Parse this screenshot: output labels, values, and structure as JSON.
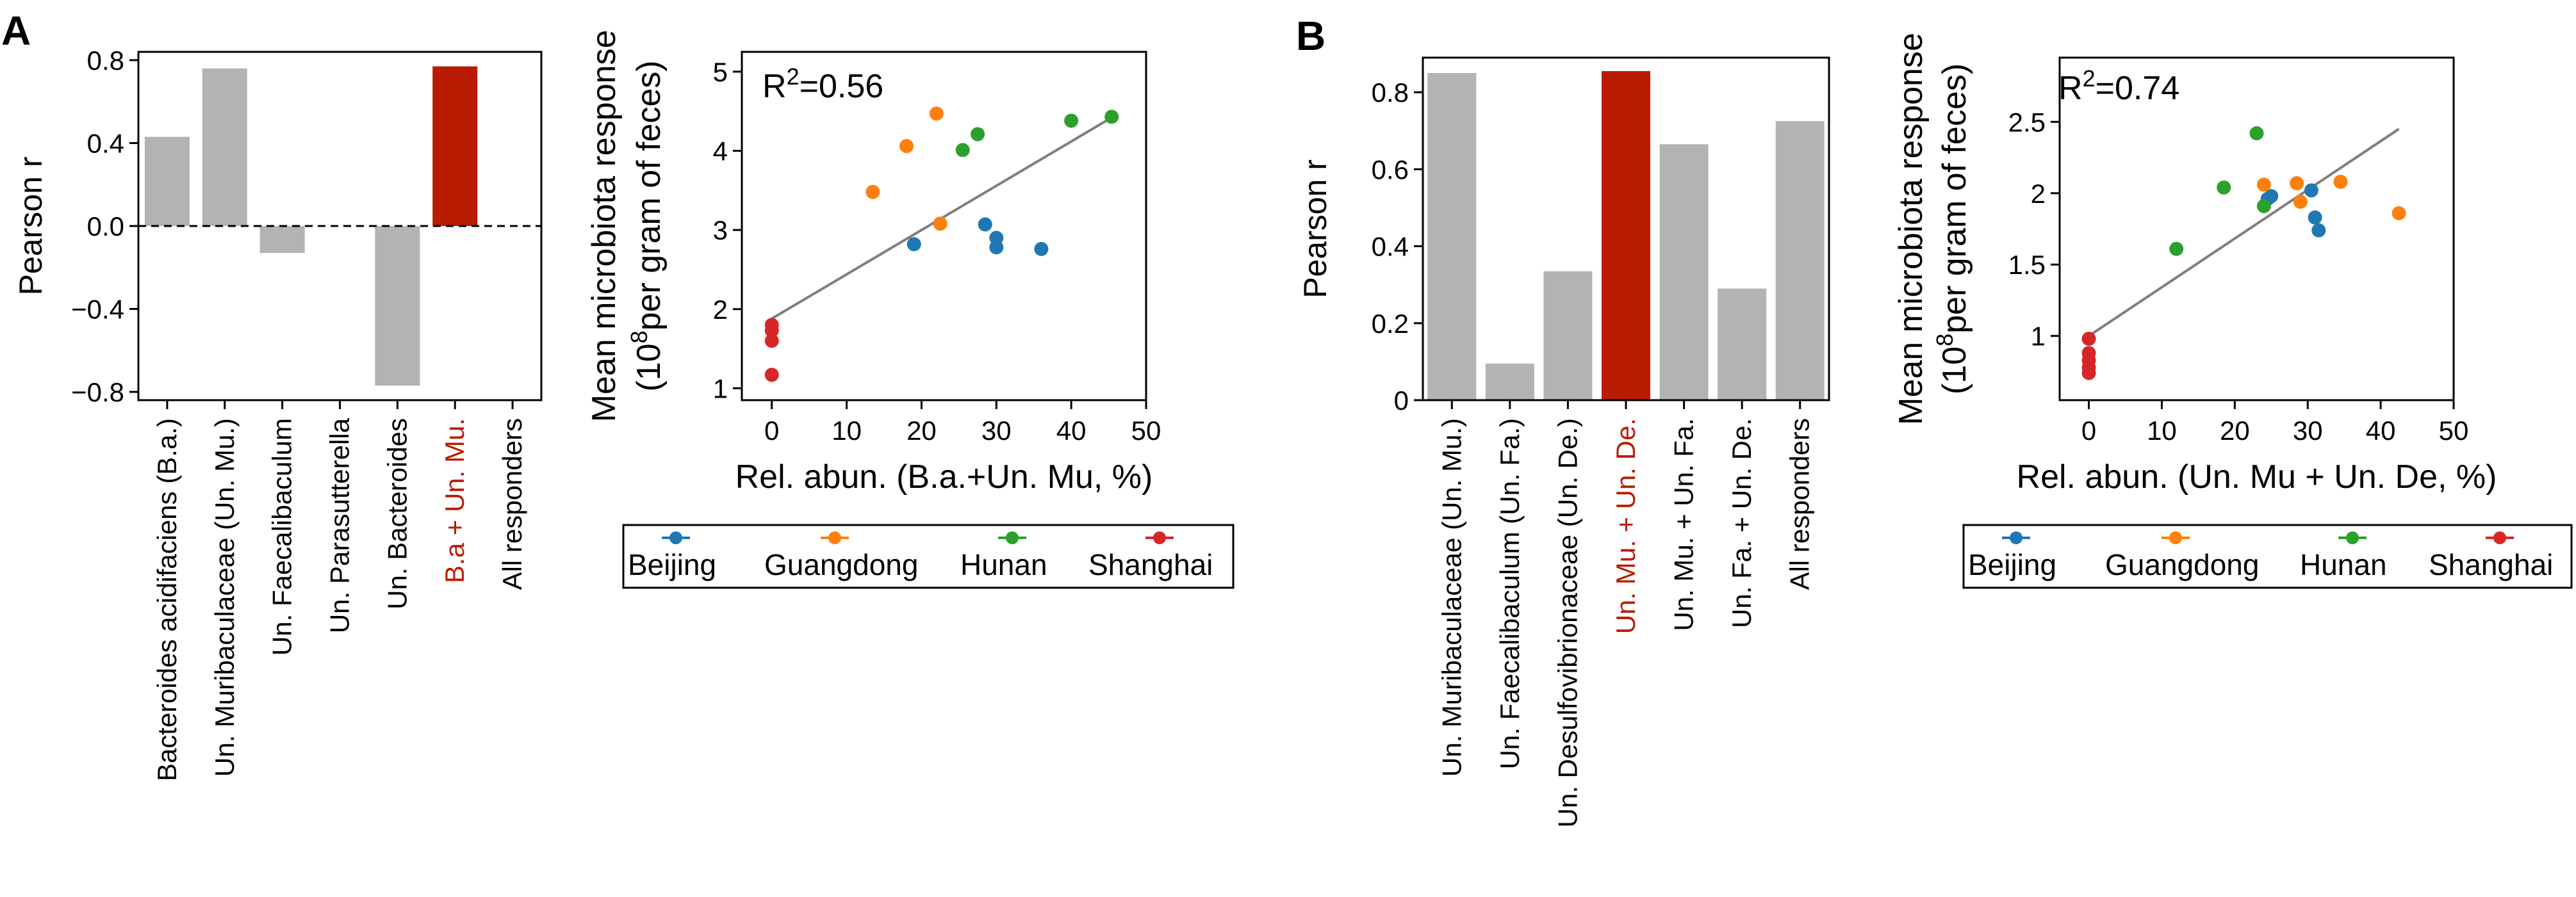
{
  "panels": [
    {
      "label": "A"
    },
    {
      "label": "B"
    }
  ],
  "chart_data": [
    {
      "id": "A-bar",
      "type": "bar",
      "ylabel": "Pearson r",
      "ylim": [
        -0.84,
        0.84
      ],
      "yticks": [
        -0.8,
        -0.4,
        0.0,
        0.4,
        0.8
      ],
      "ytick_labels": [
        "−0.8",
        "−0.4",
        "0.0",
        "0.4",
        "0.8"
      ],
      "zero_line": "dashed",
      "categories": [
        "Bacteroides acidifaciens (B.a.)",
        "Un. Muribaculaceae (Un. Mu.)",
        "Un. Faecalibaculum",
        "Un. Parasutterella",
        "Un. Bacteroides",
        "B.a + Un. Mu.",
        "All responders"
      ],
      "values": [
        0.43,
        0.76,
        -0.13,
        null,
        -0.77,
        0.77,
        null
      ],
      "highlight_index": 5,
      "colors": {
        "default": "#b3b3b3",
        "highlight": "#b91c03"
      }
    },
    {
      "id": "A-scatter",
      "type": "scatter",
      "annotation": {
        "prefix": "R",
        "sup": "2",
        "suffix": "=0.56"
      },
      "xlabel": "Rel. abun. (B.a.+Un. Mu, %)",
      "ylabel_line1": "Mean microbiota response",
      "ylabel_line2_sup": "8",
      "ylabel_line2_pre": "(10",
      "ylabel_line2_post": "per gram of feces)",
      "xlim": [
        -4,
        50
      ],
      "ylim": [
        0.85,
        5.25
      ],
      "xticks": [
        0,
        10,
        20,
        30,
        40,
        50
      ],
      "yticks": [
        1,
        2,
        3,
        4,
        5
      ],
      "ytick_labels": [
        "1",
        "2",
        "3",
        "4",
        "5"
      ],
      "fit_line": {
        "x": [
          0,
          45.4
        ],
        "y": [
          1.88,
          4.42
        ]
      },
      "series": [
        {
          "name": "Beijing",
          "color": "#1f77b4",
          "points": [
            [
              19,
              2.82
            ],
            [
              28.5,
              3.07
            ],
            [
              30,
              2.9
            ],
            [
              30,
              2.78
            ],
            [
              36,
              2.76
            ]
          ]
        },
        {
          "name": "Guangdong",
          "color": "#ff7f0e",
          "points": [
            [
              13.5,
              3.48
            ],
            [
              18,
              4.06
            ],
            [
              22,
              4.47
            ],
            [
              22.5,
              3.08
            ]
          ]
        },
        {
          "name": "Hunan",
          "color": "#2ca02c",
          "points": [
            [
              25.5,
              4.01
            ],
            [
              27.5,
              4.21
            ],
            [
              40,
              4.38
            ],
            [
              45.4,
              4.43
            ]
          ]
        },
        {
          "name": "Shanghai",
          "color": "#d62728",
          "points": [
            [
              0,
              1.8
            ],
            [
              0,
              1.73
            ],
            [
              0,
              1.6
            ],
            [
              0,
              1.17
            ]
          ]
        }
      ]
    },
    {
      "id": "B-bar",
      "type": "bar",
      "ylabel": "Pearson r",
      "ylim": [
        0,
        0.89
      ],
      "yticks": [
        0,
        0.2,
        0.4,
        0.6,
        0.8
      ],
      "ytick_labels": [
        "0",
        "0.2",
        "0.4",
        "0.6",
        "0.8"
      ],
      "categories": [
        "Un. Muribaculaceae (Un. Mu.)",
        "Un. Faecalibaculum (Un. Fa.)",
        "Un. Desulfovibrionaceae (Un. De.)",
        "Un. Mu. + Un. De.",
        "Un. Mu. + Un. Fa.",
        "Un. Fa. + Un. De.",
        "All responders"
      ],
      "values": [
        0.85,
        0.095,
        0.335,
        0.855,
        0.665,
        0.29,
        0.725
      ],
      "highlight_index": 3,
      "colors": {
        "default": "#b3b3b3",
        "highlight": "#b91c03"
      }
    },
    {
      "id": "B-scatter",
      "type": "scatter",
      "annotation": {
        "prefix": "R",
        "sup": "2",
        "suffix": "=0.74"
      },
      "xlabel": "Rel. abun. (Un. Mu + Un. De, %)",
      "ylabel_line1": "Mean microbiota response",
      "ylabel_line2_sup": "8",
      "ylabel_line2_pre": "(10",
      "ylabel_line2_post": "per gram of feces)",
      "xlim": [
        -4,
        50
      ],
      "ylim": [
        0.55,
        2.95
      ],
      "xticks": [
        0,
        10,
        20,
        30,
        40,
        50
      ],
      "yticks": [
        1,
        1.5,
        2,
        2.5
      ],
      "ytick_labels": [
        "1",
        "1.5",
        "2",
        "2.5"
      ],
      "fit_line": {
        "x": [
          0,
          42.5
        ],
        "y": [
          1.0,
          2.45
        ]
      },
      "series": [
        {
          "name": "Beijing",
          "color": "#1f77b4",
          "points": [
            [
              25,
              1.98
            ],
            [
              30.5,
              2.02
            ],
            [
              31,
              1.83
            ],
            [
              31.5,
              1.74
            ],
            [
              24.5,
              1.96
            ]
          ]
        },
        {
          "name": "Guangdong",
          "color": "#ff7f0e",
          "points": [
            [
              24,
              2.06
            ],
            [
              28.5,
              2.07
            ],
            [
              29,
              1.94
            ],
            [
              34.5,
              2.08
            ],
            [
              42.5,
              1.86
            ]
          ]
        },
        {
          "name": "Hunan",
          "color": "#2ca02c",
          "points": [
            [
              12,
              1.61
            ],
            [
              18.5,
              2.04
            ],
            [
              23,
              2.42
            ],
            [
              24,
              1.91
            ]
          ]
        },
        {
          "name": "Shanghai",
          "color": "#d62728",
          "points": [
            [
              0,
              0.98
            ],
            [
              0,
              0.88
            ],
            [
              0,
              0.83
            ],
            [
              0,
              0.78
            ],
            [
              0,
              0.74
            ]
          ]
        }
      ]
    }
  ]
}
